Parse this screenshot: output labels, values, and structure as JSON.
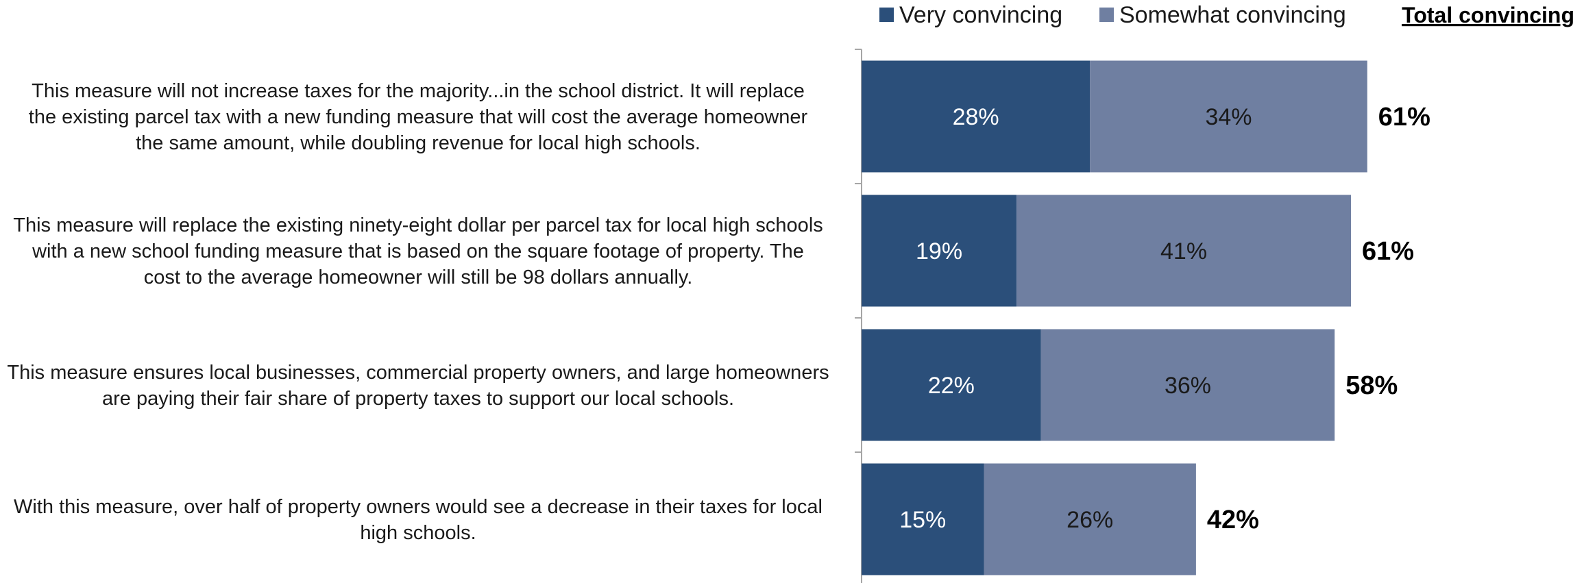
{
  "chart_data": {
    "type": "bar",
    "orientation": "horizontal",
    "stacked": true,
    "categories": [
      "This measure will not increase taxes for the majority...in the school district. It will replace the existing parcel tax with a new funding measure that will cost the average homeowner the same amount, while doubling revenue for local high schools.",
      "This measure will replace the existing ninety-eight dollar per parcel tax for local high schools with a new school funding measure that is based on the square footage of property. The cost to the average homeowner will still be 98 dollars annually.",
      "This measure ensures local businesses, commercial property owners, and large homeowners are paying their fair share of property taxes to support our local schools.",
      "With this measure, over half of property owners would see a decrease in their taxes for local high schools."
    ],
    "category_lines": [
      [
        "This measure will not increase taxes for the majority...in the school district. It will replace",
        "the existing parcel tax with a new funding measure that will cost the average homeowner",
        "the same amount, while doubling revenue for local high schools."
      ],
      [
        "This measure will replace the existing ninety-eight dollar per parcel tax for local high schools",
        "with a new school funding measure that is based on the square footage of property. The",
        "cost to the average homeowner will still be 98 dollars annually."
      ],
      [
        "This measure ensures local businesses, commercial property owners, and large homeowners",
        "are paying their fair share of property taxes to support our local schools."
      ],
      [
        "With this measure, over half of property owners would see a decrease in their taxes for local",
        "high schools."
      ]
    ],
    "series": [
      {
        "name": "Very convincing",
        "color": "#2b4f7a",
        "values": [
          28,
          19,
          22,
          15
        ],
        "labels": [
          "28%",
          "19%",
          "22%",
          "15%"
        ]
      },
      {
        "name": "Somewhat convincing",
        "color": "#6f7fa1",
        "values": [
          34,
          41,
          36,
          26
        ],
        "labels": [
          "34%",
          "41%",
          "36%",
          "26%"
        ]
      }
    ],
    "totals": {
      "header": "Total convincing",
      "values": [
        61,
        61,
        58,
        42
      ],
      "labels": [
        "61%",
        "61%",
        "58%",
        "42%"
      ]
    },
    "xlim": [
      0,
      100
    ],
    "grid": false,
    "legend_position": "top"
  }
}
